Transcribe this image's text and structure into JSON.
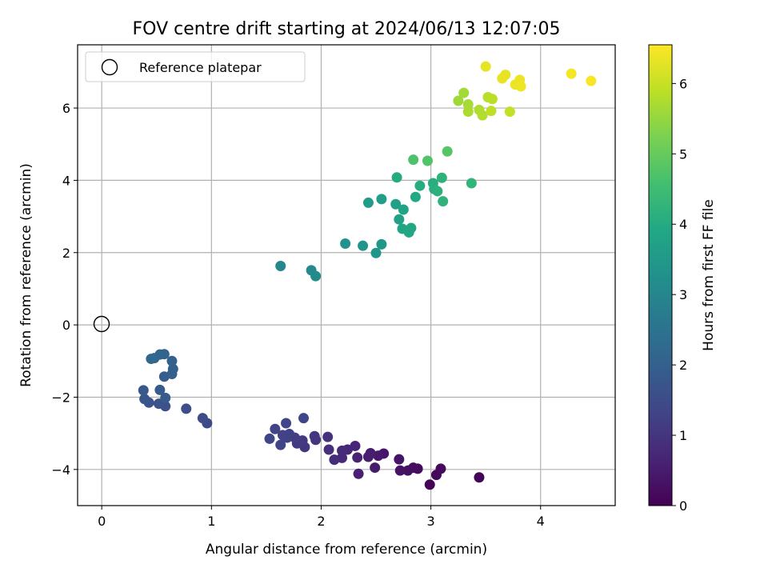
{
  "chart_data": {
    "type": "scatter",
    "title": "FOV centre drift starting at 2024/06/13 12:07:05",
    "xlabel": "Angular distance from reference (arcmin)",
    "ylabel": "Rotation from reference (arcmin)",
    "xlim": [
      -0.22,
      4.68
    ],
    "ylim": [
      -5.0,
      7.75
    ],
    "x_ticks": [
      "0",
      "1",
      "2",
      "3",
      "4"
    ],
    "y_ticks": [
      "−4",
      "−2",
      "0",
      "2",
      "4",
      "6"
    ],
    "grid": true,
    "colorbar": {
      "label": "Hours from first FF file",
      "range": [
        0,
        6.55
      ],
      "ticks": [
        "0",
        "1",
        "2",
        "3",
        "4",
        "5",
        "6"
      ],
      "colormap": "viridis"
    },
    "legend": {
      "placement": "top-left",
      "entries": [
        {
          "label": "Reference platepar",
          "marker": "open-circle"
        }
      ]
    },
    "reference_point": {
      "x": 0,
      "y": 0
    },
    "points": [
      {
        "x": 3.44,
        "y": -4.22,
        "t": 0.05
      },
      {
        "x": 2.99,
        "y": -4.42,
        "t": 0.08
      },
      {
        "x": 3.05,
        "y": -4.15,
        "t": 0.12
      },
      {
        "x": 3.09,
        "y": -3.98,
        "t": 0.16
      },
      {
        "x": 2.88,
        "y": -3.98,
        "t": 0.2
      },
      {
        "x": 2.84,
        "y": -3.95,
        "t": 0.24
      },
      {
        "x": 2.79,
        "y": -4.03,
        "t": 0.28
      },
      {
        "x": 2.72,
        "y": -4.03,
        "t": 0.32
      },
      {
        "x": 2.71,
        "y": -3.72,
        "t": 0.36
      },
      {
        "x": 2.57,
        "y": -3.56,
        "t": 0.4
      },
      {
        "x": 2.52,
        "y": -3.62,
        "t": 0.44
      },
      {
        "x": 2.49,
        "y": -3.95,
        "t": 0.48
      },
      {
        "x": 2.45,
        "y": -3.55,
        "t": 0.52
      },
      {
        "x": 2.43,
        "y": -3.65,
        "t": 0.56
      },
      {
        "x": 2.34,
        "y": -4.12,
        "t": 0.6
      },
      {
        "x": 2.33,
        "y": -3.67,
        "t": 0.64
      },
      {
        "x": 2.31,
        "y": -3.35,
        "t": 0.68
      },
      {
        "x": 2.24,
        "y": -3.45,
        "t": 0.72
      },
      {
        "x": 2.19,
        "y": -3.68,
        "t": 0.76
      },
      {
        "x": 2.19,
        "y": -3.48,
        "t": 0.8
      },
      {
        "x": 2.12,
        "y": -3.73,
        "t": 0.84
      },
      {
        "x": 2.07,
        "y": -3.45,
        "t": 0.88
      },
      {
        "x": 2.06,
        "y": -3.1,
        "t": 0.92
      },
      {
        "x": 1.95,
        "y": -3.18,
        "t": 0.96
      },
      {
        "x": 1.94,
        "y": -3.08,
        "t": 1.0
      },
      {
        "x": 1.85,
        "y": -3.38,
        "t": 1.04
      },
      {
        "x": 1.83,
        "y": -3.2,
        "t": 1.08
      },
      {
        "x": 1.78,
        "y": -3.28,
        "t": 1.12
      },
      {
        "x": 1.76,
        "y": -3.12,
        "t": 1.16
      },
      {
        "x": 1.71,
        "y": -3.02,
        "t": 1.2
      },
      {
        "x": 1.69,
        "y": -3.12,
        "t": 1.24
      },
      {
        "x": 1.65,
        "y": -3.05,
        "t": 1.28
      },
      {
        "x": 1.63,
        "y": -3.32,
        "t": 1.3
      },
      {
        "x": 1.58,
        "y": -2.88,
        "t": 1.32
      },
      {
        "x": 1.53,
        "y": -3.15,
        "t": 1.34
      },
      {
        "x": 1.68,
        "y": -2.72,
        "t": 1.36
      },
      {
        "x": 1.84,
        "y": -2.58,
        "t": 1.38
      },
      {
        "x": 0.96,
        "y": -2.72,
        "t": 1.45
      },
      {
        "x": 0.92,
        "y": -2.58,
        "t": 1.5
      },
      {
        "x": 0.77,
        "y": -2.32,
        "t": 1.55
      },
      {
        "x": 0.58,
        "y": -2.25,
        "t": 1.6
      },
      {
        "x": 0.52,
        "y": -2.18,
        "t": 1.65
      },
      {
        "x": 0.43,
        "y": -2.15,
        "t": 1.7
      },
      {
        "x": 0.39,
        "y": -2.05,
        "t": 1.75
      },
      {
        "x": 0.38,
        "y": -1.81,
        "t": 1.8
      },
      {
        "x": 0.53,
        "y": -1.8,
        "t": 1.85
      },
      {
        "x": 0.58,
        "y": -2.02,
        "t": 1.88
      },
      {
        "x": 0.57,
        "y": -1.43,
        "t": 1.92
      },
      {
        "x": 0.64,
        "y": -1.36,
        "t": 1.96
      },
      {
        "x": 0.65,
        "y": -1.22,
        "t": 2.0
      },
      {
        "x": 0.64,
        "y": -1.0,
        "t": 2.04
      },
      {
        "x": 0.57,
        "y": -0.81,
        "t": 2.08
      },
      {
        "x": 0.53,
        "y": -0.82,
        "t": 2.12
      },
      {
        "x": 0.48,
        "y": -0.92,
        "t": 2.16
      },
      {
        "x": 0.45,
        "y": -0.94,
        "t": 2.2
      },
      {
        "x": 1.63,
        "y": 1.63,
        "t": 3.0
      },
      {
        "x": 1.91,
        "y": 1.51,
        "t": 3.08
      },
      {
        "x": 1.95,
        "y": 1.35,
        "t": 3.12
      },
      {
        "x": 2.22,
        "y": 2.25,
        "t": 3.3
      },
      {
        "x": 2.38,
        "y": 2.19,
        "t": 3.38
      },
      {
        "x": 2.5,
        "y": 1.99,
        "t": 3.42
      },
      {
        "x": 2.55,
        "y": 2.23,
        "t": 3.46
      },
      {
        "x": 2.43,
        "y": 3.38,
        "t": 3.6
      },
      {
        "x": 2.55,
        "y": 3.48,
        "t": 3.64
      },
      {
        "x": 2.68,
        "y": 3.34,
        "t": 3.7
      },
      {
        "x": 2.71,
        "y": 2.92,
        "t": 3.74
      },
      {
        "x": 2.75,
        "y": 3.19,
        "t": 3.78
      },
      {
        "x": 2.74,
        "y": 2.66,
        "t": 3.82
      },
      {
        "x": 2.8,
        "y": 2.56,
        "t": 3.86
      },
      {
        "x": 2.82,
        "y": 2.68,
        "t": 3.9
      },
      {
        "x": 2.86,
        "y": 3.54,
        "t": 3.94
      },
      {
        "x": 2.69,
        "y": 4.08,
        "t": 3.98
      },
      {
        "x": 2.9,
        "y": 3.85,
        "t": 4.02
      },
      {
        "x": 3.02,
        "y": 3.92,
        "t": 4.06
      },
      {
        "x": 3.03,
        "y": 3.76,
        "t": 4.1
      },
      {
        "x": 3.06,
        "y": 3.7,
        "t": 4.14
      },
      {
        "x": 3.1,
        "y": 4.07,
        "t": 4.18
      },
      {
        "x": 3.11,
        "y": 3.42,
        "t": 4.22
      },
      {
        "x": 3.37,
        "y": 3.92,
        "t": 4.26
      },
      {
        "x": 2.84,
        "y": 4.57,
        "t": 4.7
      },
      {
        "x": 2.97,
        "y": 4.54,
        "t": 4.74
      },
      {
        "x": 3.15,
        "y": 4.8,
        "t": 4.8
      },
      {
        "x": 3.25,
        "y": 6.2,
        "t": 5.6
      },
      {
        "x": 3.3,
        "y": 6.42,
        "t": 5.64
      },
      {
        "x": 3.34,
        "y": 6.1,
        "t": 5.68
      },
      {
        "x": 3.34,
        "y": 5.9,
        "t": 5.72
      },
      {
        "x": 3.44,
        "y": 5.95,
        "t": 5.76
      },
      {
        "x": 3.47,
        "y": 5.8,
        "t": 5.8
      },
      {
        "x": 3.52,
        "y": 6.3,
        "t": 5.84
      },
      {
        "x": 3.56,
        "y": 6.25,
        "t": 5.88
      },
      {
        "x": 3.55,
        "y": 5.92,
        "t": 5.92
      },
      {
        "x": 3.72,
        "y": 5.9,
        "t": 5.96
      },
      {
        "x": 3.5,
        "y": 7.15,
        "t": 6.3
      },
      {
        "x": 3.65,
        "y": 6.82,
        "t": 6.32
      },
      {
        "x": 3.68,
        "y": 6.92,
        "t": 6.34
      },
      {
        "x": 3.77,
        "y": 6.65,
        "t": 6.36
      },
      {
        "x": 3.81,
        "y": 6.78,
        "t": 6.38
      },
      {
        "x": 3.82,
        "y": 6.6,
        "t": 6.4
      },
      {
        "x": 4.28,
        "y": 6.95,
        "t": 6.45
      },
      {
        "x": 4.46,
        "y": 6.75,
        "t": 6.5
      }
    ]
  }
}
